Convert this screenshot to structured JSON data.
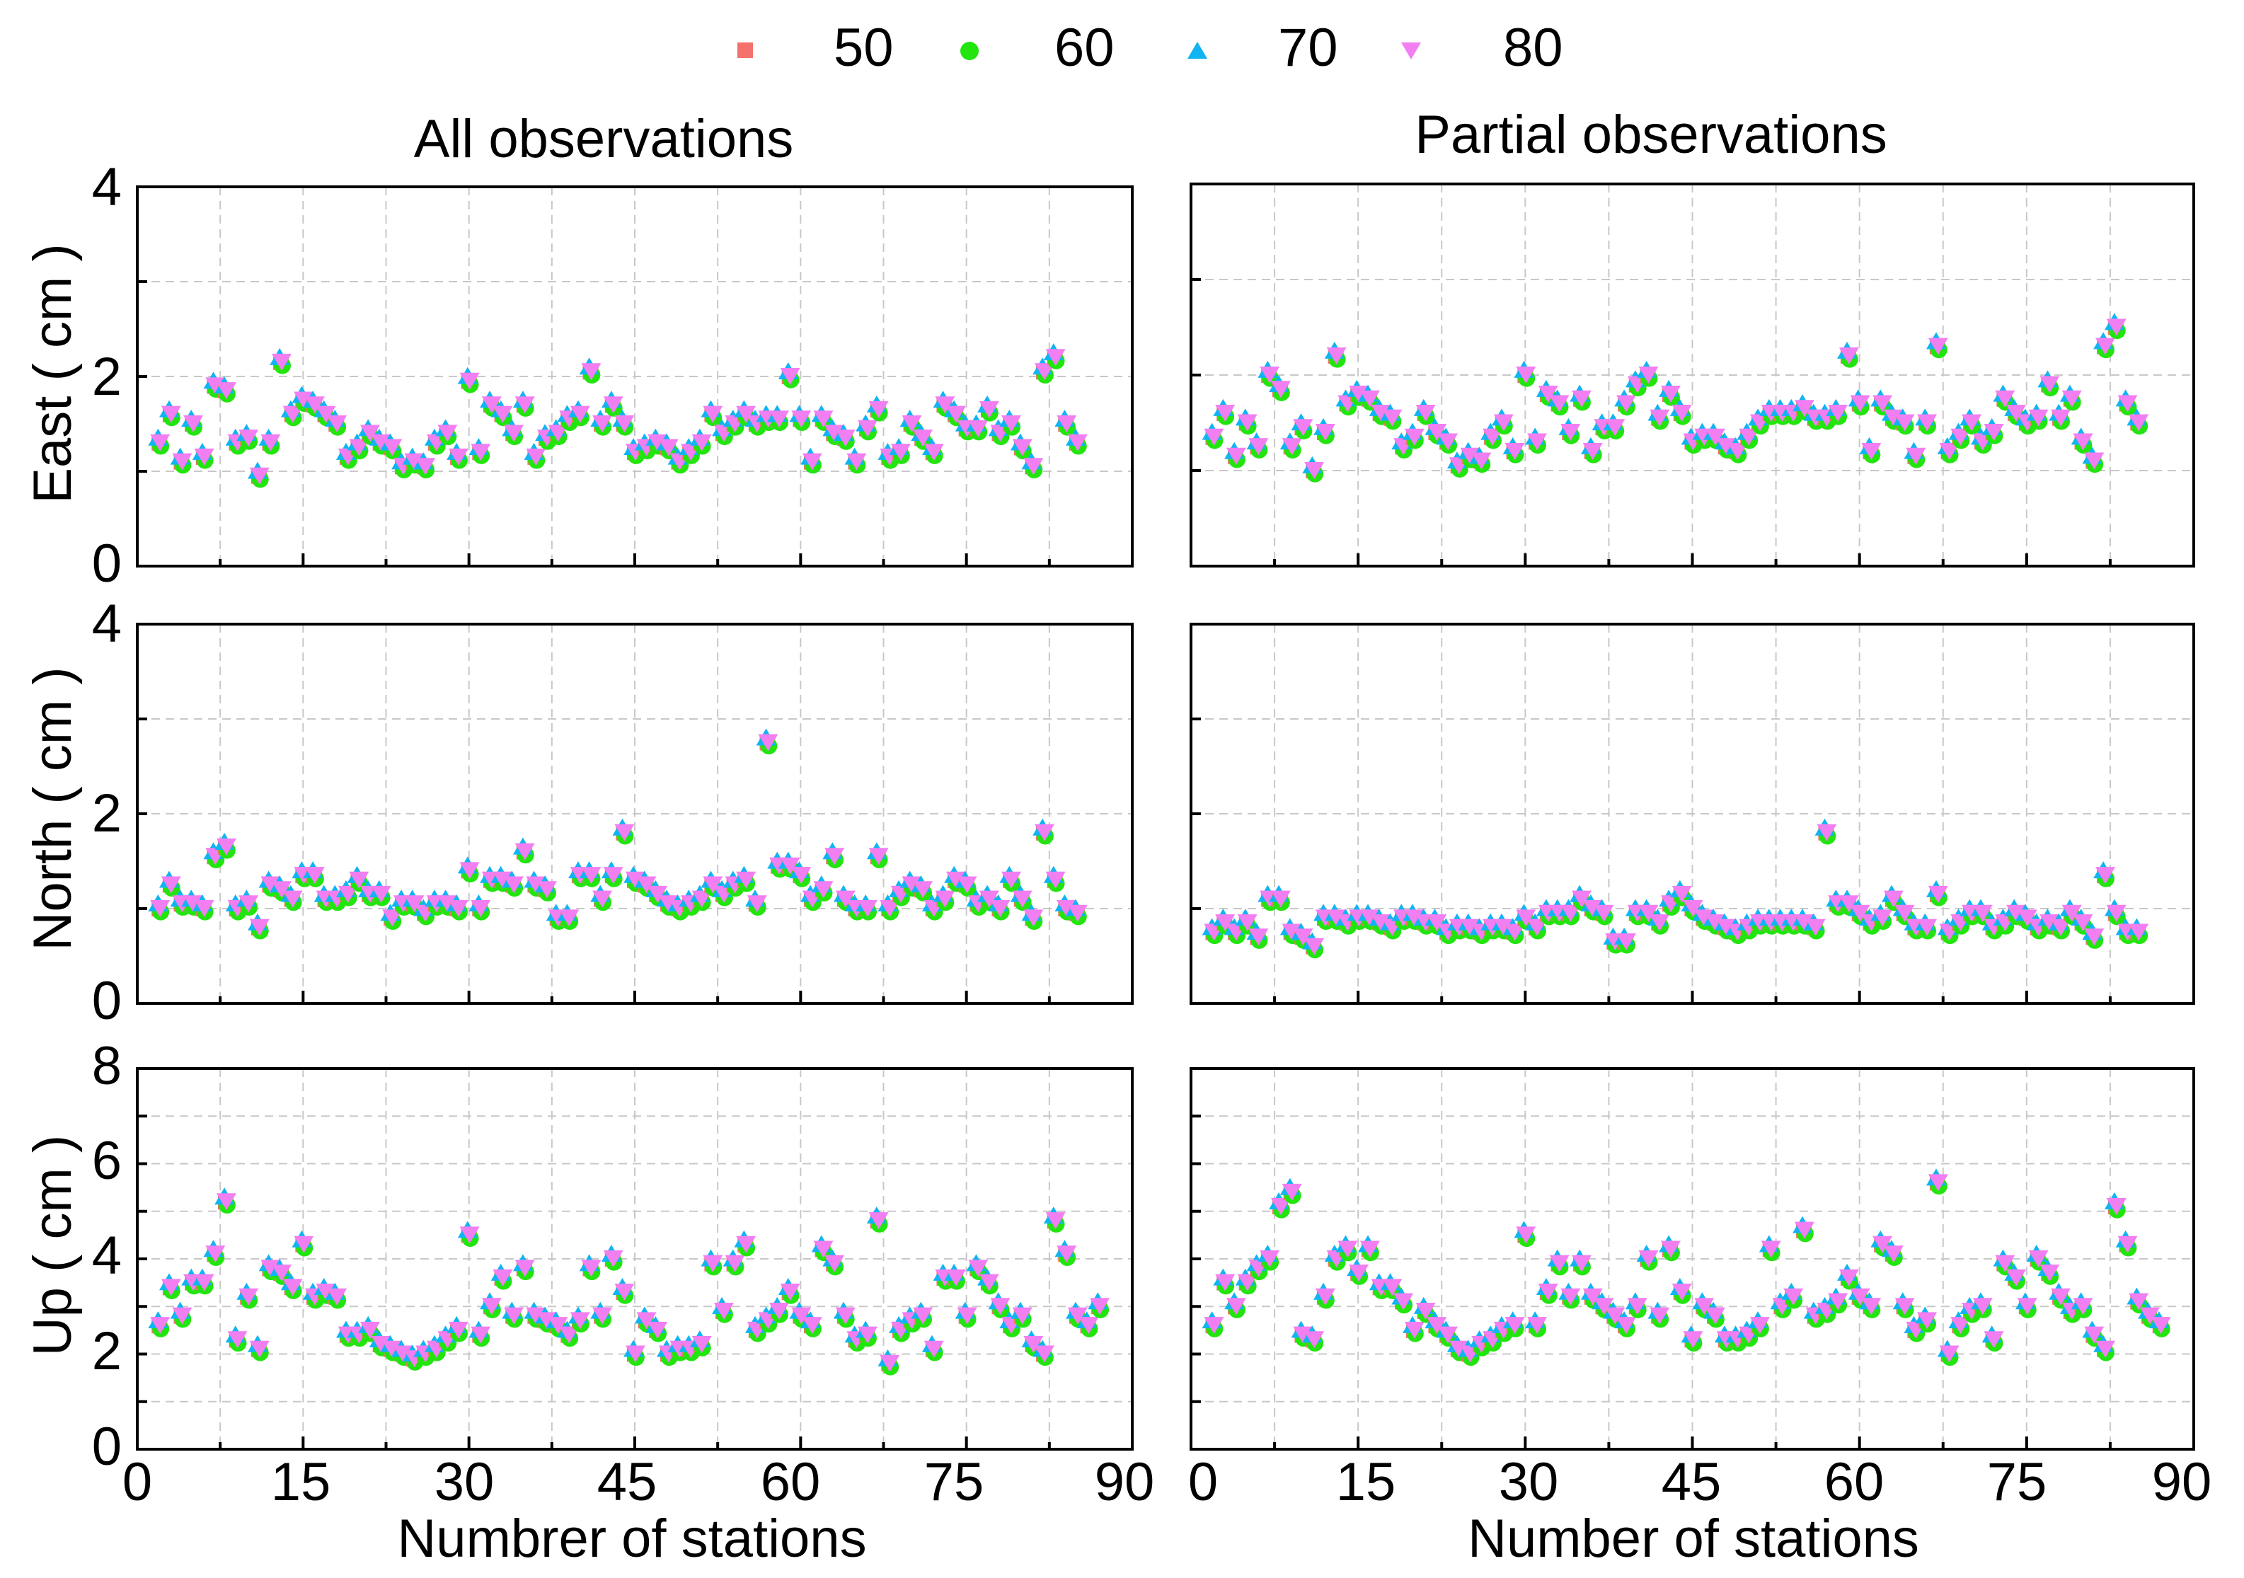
{
  "legend": {
    "items": [
      {
        "label": "50",
        "color": "#f4726b",
        "marker": "square"
      },
      {
        "label": "60",
        "color": "#22e50e",
        "marker": "circle"
      },
      {
        "label": "70",
        "color": "#10b4f2",
        "marker": "triangle-up"
      },
      {
        "label": "80",
        "color": "#f17ff1",
        "marker": "triangle-down"
      }
    ]
  },
  "columns": {
    "left_title": "All observations",
    "right_title": "Partial observations",
    "left_xlabel": "Numbrer of stations",
    "right_xlabel": "Number of stations"
  },
  "rows": {
    "east_ylabel": "East ( cm )",
    "north_ylabel": "North ( cm )",
    "up_ylabel": "Up ( cm )"
  },
  "axes": {
    "x_ticks": [
      "0",
      "15",
      "30",
      "45",
      "60",
      "75",
      "90"
    ],
    "east_ticks": [
      "0",
      "2",
      "4"
    ],
    "north_ticks": [
      "0",
      "2",
      "4"
    ],
    "up_ticks": [
      "0",
      "2",
      "4",
      "6",
      "8"
    ]
  },
  "chart_data": {
    "type": "scatter",
    "x_range": [
      0,
      90
    ],
    "series_names": [
      "50",
      "60",
      "70",
      "80"
    ],
    "panels": [
      {
        "id": "all-east",
        "ylim": [
          0,
          4
        ],
        "values": [
          1.3,
          1.6,
          1.1,
          1.5,
          1.15,
          1.9,
          1.85,
          1.3,
          1.35,
          0.95,
          1.3,
          2.15,
          1.6,
          1.75,
          1.7,
          1.6,
          1.5,
          1.15,
          1.25,
          1.4,
          1.3,
          1.25,
          1.05,
          1.1,
          1.05,
          1.3,
          1.4,
          1.15,
          1.95,
          1.2,
          1.7,
          1.6,
          1.4,
          1.7,
          1.15,
          1.35,
          1.4,
          1.55,
          1.6,
          2.05,
          1.5,
          1.7,
          1.5,
          1.2,
          1.25,
          1.3,
          1.25,
          1.1,
          1.2,
          1.3,
          1.6,
          1.4,
          1.5,
          1.6,
          1.5,
          1.55,
          1.55,
          2.0,
          1.55,
          1.1,
          1.55,
          1.4,
          1.35,
          1.1,
          1.45,
          1.65,
          1.15,
          1.2,
          1.5,
          1.35,
          1.2,
          1.7,
          1.6,
          1.45,
          1.45,
          1.65,
          1.4,
          1.5,
          1.25,
          1.05,
          2.05,
          2.2,
          1.5,
          1.3
        ]
      },
      {
        "id": "partial-east",
        "ylim": [
          0,
          4
        ],
        "values": [
          1.35,
          1.6,
          1.15,
          1.5,
          1.25,
          2.0,
          1.85,
          1.25,
          1.45,
          1.0,
          1.4,
          2.2,
          1.7,
          1.8,
          1.75,
          1.6,
          1.55,
          1.25,
          1.35,
          1.6,
          1.4,
          1.3,
          1.05,
          1.15,
          1.1,
          1.35,
          1.5,
          1.2,
          2.0,
          1.3,
          1.8,
          1.7,
          1.4,
          1.75,
          1.2,
          1.45,
          1.45,
          1.7,
          1.9,
          2.0,
          1.55,
          1.8,
          1.6,
          1.3,
          1.35,
          1.35,
          1.25,
          1.2,
          1.35,
          1.5,
          1.6,
          1.6,
          1.6,
          1.65,
          1.55,
          1.55,
          1.6,
          2.2,
          1.7,
          1.2,
          1.7,
          1.55,
          1.5,
          1.15,
          1.5,
          2.3,
          1.2,
          1.35,
          1.5,
          1.3,
          1.4,
          1.75,
          1.6,
          1.5,
          1.55,
          1.9,
          1.55,
          1.75,
          1.3,
          1.1,
          2.3,
          2.5,
          1.7,
          1.5
        ]
      },
      {
        "id": "all-north",
        "ylim": [
          0,
          4
        ],
        "values": [
          1.0,
          1.25,
          1.05,
          1.05,
          1.0,
          1.55,
          1.65,
          1.0,
          1.05,
          0.8,
          1.25,
          1.2,
          1.1,
          1.35,
          1.35,
          1.1,
          1.1,
          1.15,
          1.3,
          1.15,
          1.15,
          0.9,
          1.05,
          1.05,
          0.95,
          1.05,
          1.05,
          1.0,
          1.4,
          1.0,
          1.3,
          1.3,
          1.25,
          1.6,
          1.25,
          1.2,
          0.9,
          0.9,
          1.35,
          1.35,
          1.1,
          1.35,
          1.8,
          1.3,
          1.25,
          1.15,
          1.05,
          1.0,
          1.05,
          1.1,
          1.25,
          1.15,
          1.25,
          1.3,
          1.05,
          2.75,
          1.45,
          1.45,
          1.35,
          1.1,
          1.2,
          1.55,
          1.1,
          1.0,
          1.0,
          1.55,
          1.0,
          1.15,
          1.25,
          1.2,
          1.0,
          1.1,
          1.3,
          1.25,
          1.05,
          1.1,
          1.0,
          1.3,
          1.1,
          0.9,
          1.8,
          1.3,
          1.0,
          0.95
        ]
      },
      {
        "id": "partial-north",
        "ylim": [
          0,
          4
        ],
        "values": [
          0.75,
          0.85,
          0.75,
          0.85,
          0.7,
          1.1,
          1.1,
          0.75,
          0.7,
          0.6,
          0.9,
          0.9,
          0.85,
          0.9,
          0.9,
          0.85,
          0.8,
          0.9,
          0.9,
          0.85,
          0.85,
          0.75,
          0.8,
          0.8,
          0.75,
          0.8,
          0.8,
          0.75,
          0.9,
          0.8,
          0.95,
          0.95,
          0.95,
          1.1,
          1.0,
          0.95,
          0.65,
          0.65,
          0.95,
          0.95,
          0.85,
          1.05,
          1.15,
          1.0,
          0.9,
          0.85,
          0.8,
          0.75,
          0.8,
          0.85,
          0.85,
          0.85,
          0.85,
          0.85,
          0.8,
          1.8,
          1.05,
          1.05,
          0.95,
          0.85,
          0.9,
          1.1,
          0.95,
          0.8,
          0.8,
          1.15,
          0.75,
          0.85,
          0.95,
          0.95,
          0.8,
          0.85,
          0.95,
          0.9,
          0.8,
          0.85,
          0.8,
          0.95,
          0.85,
          0.7,
          1.35,
          0.95,
          0.75,
          0.75
        ]
      },
      {
        "id": "all-up",
        "ylim": [
          0,
          8
        ],
        "values": [
          2.6,
          3.4,
          2.8,
          3.5,
          3.5,
          4.1,
          5.2,
          2.3,
          3.2,
          2.1,
          3.8,
          3.7,
          3.4,
          4.3,
          3.2,
          3.3,
          3.2,
          2.4,
          2.4,
          2.5,
          2.2,
          2.1,
          2.0,
          1.9,
          2.0,
          2.1,
          2.3,
          2.5,
          4.5,
          2.4,
          3.0,
          3.6,
          2.8,
          3.8,
          2.8,
          2.7,
          2.6,
          2.4,
          2.7,
          3.8,
          2.8,
          4.0,
          3.3,
          2.0,
          2.7,
          2.5,
          2.0,
          2.1,
          2.1,
          2.2,
          3.9,
          2.9,
          3.9,
          4.3,
          2.5,
          2.7,
          2.9,
          3.3,
          2.8,
          2.6,
          4.2,
          3.9,
          2.8,
          2.3,
          2.4,
          4.8,
          1.8,
          2.5,
          2.7,
          2.8,
          2.1,
          3.6,
          3.6,
          2.8,
          3.8,
          3.5,
          3.0,
          2.6,
          2.8,
          2.2,
          2.0,
          4.8,
          4.1,
          2.8,
          2.6,
          3.0
        ]
      },
      {
        "id": "partial-up",
        "ylim": [
          0,
          8
        ],
        "values": [
          2.6,
          3.5,
          3.0,
          3.5,
          3.8,
          4.0,
          5.1,
          5.4,
          2.4,
          2.3,
          3.2,
          4.0,
          4.2,
          3.7,
          4.2,
          3.4,
          3.4,
          3.1,
          2.5,
          2.9,
          2.6,
          2.4,
          2.1,
          2.0,
          2.2,
          2.3,
          2.5,
          2.6,
          4.5,
          2.6,
          3.3,
          3.9,
          3.2,
          3.9,
          3.2,
          3.0,
          2.8,
          2.6,
          3.0,
          4.0,
          2.8,
          4.2,
          3.3,
          2.3,
          3.0,
          2.8,
          2.3,
          2.3,
          2.4,
          2.6,
          4.2,
          3.0,
          3.2,
          4.6,
          2.8,
          2.9,
          3.1,
          3.6,
          3.2,
          3.0,
          4.3,
          4.1,
          3.0,
          2.5,
          2.7,
          5.6,
          2.0,
          2.6,
          2.9,
          3.0,
          2.3,
          3.9,
          3.6,
          3.0,
          4.0,
          3.7,
          3.2,
          2.9,
          3.0,
          2.4,
          2.1,
          5.1,
          4.3,
          3.1,
          2.8,
          2.6
        ]
      }
    ]
  }
}
